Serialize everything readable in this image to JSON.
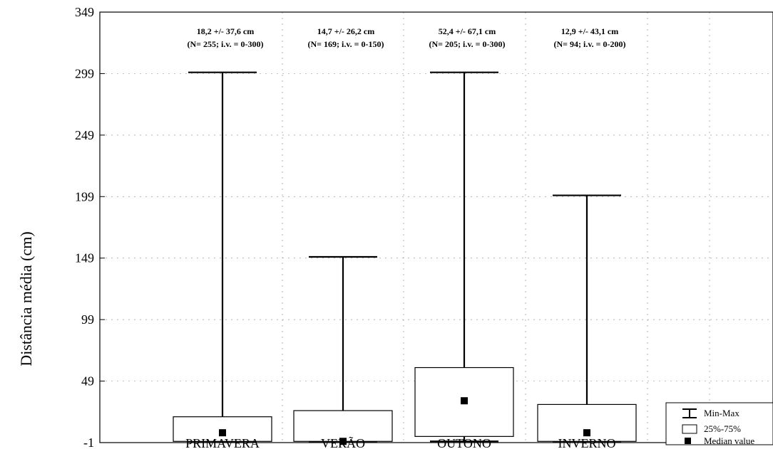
{
  "chart_data": {
    "type": "box",
    "ylabel": "Distância média (cm)",
    "xlabel": "",
    "ylim": [
      -1,
      349
    ],
    "yticks": [
      -1,
      49,
      99,
      149,
      199,
      249,
      299,
      349
    ],
    "grid": true,
    "legend_position": "bottom-right",
    "legend": [
      "Min-Max",
      "25%-75%",
      "Median value"
    ],
    "categories": [
      "PRIMAVERA",
      "VERÃO",
      "OUTONO",
      "INVERNO"
    ],
    "boxes": [
      {
        "category": "PRIMAVERA",
        "min": 0,
        "q1": 0,
        "median": 7,
        "q3": 20,
        "max": 300,
        "annotation": [
          "18,2 +/- 37,6 cm",
          "(N= 255; i.v. = 0-300)"
        ]
      },
      {
        "category": "VERÃO",
        "min": 0,
        "q1": 0,
        "median": 0,
        "q3": 25,
        "max": 150,
        "annotation": [
          "14,7 +/- 26,2 cm",
          "(N= 169; i.v. = 0-150)"
        ]
      },
      {
        "category": "OUTONO",
        "min": 0,
        "q1": 4,
        "median": 33,
        "q3": 60,
        "max": 300,
        "annotation": [
          "52,4 +/- 67,1 cm",
          "(N= 205; i.v. = 0-300)"
        ]
      },
      {
        "category": "INVERNO",
        "min": 0,
        "q1": 0,
        "median": 7,
        "q3": 30,
        "max": 200,
        "annotation": [
          "12,9 +/- 43,1 cm",
          "(N= 94; i.v. = 0-200)"
        ]
      }
    ]
  }
}
